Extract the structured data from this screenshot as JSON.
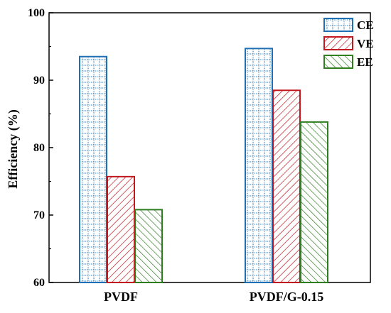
{
  "chart_data": {
    "type": "bar",
    "title": "",
    "xlabel": "",
    "ylabel": "Efficiency (%)",
    "ylim": [
      60,
      100
    ],
    "yticks": [
      60,
      70,
      80,
      90,
      100
    ],
    "grid": false,
    "legend_position": "top-right",
    "categories": [
      "PVDF",
      "PVDF/G-0.15"
    ],
    "series": [
      {
        "name": "CE",
        "values": [
          93.5,
          94.7
        ],
        "color": "#1f6fb5",
        "pattern": "dotted-grid"
      },
      {
        "name": "VE",
        "values": [
          75.7,
          88.5
        ],
        "color": "#c0181e",
        "pattern": "diagonal-hatch"
      },
      {
        "name": "EE",
        "values": [
          70.8,
          83.8
        ],
        "color": "#2e7d1f",
        "pattern": "diagonal-hatch-reverse"
      }
    ]
  }
}
